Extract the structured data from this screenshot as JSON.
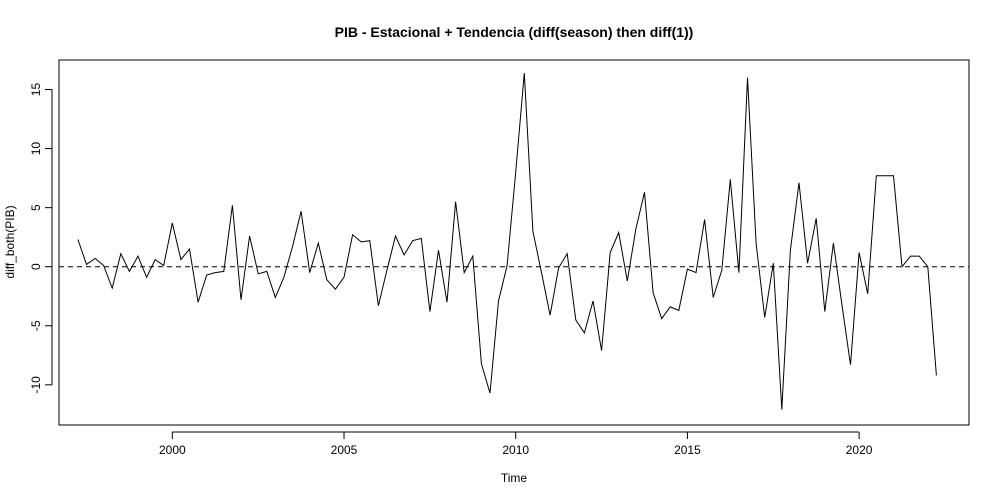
{
  "chart_data": {
    "type": "line",
    "title": "PIB - Estacional + Tendencia (diff(season) then diff(1))",
    "xlabel": "Time",
    "ylabel": "diff_both(PIB)",
    "xlim": [
      1996.7,
      2023.2
    ],
    "ylim": [
      -13.4,
      17.5
    ],
    "x_ticks": [
      2000,
      2005,
      2010,
      2015,
      2020
    ],
    "x_tick_labels": [
      "2000",
      "2005",
      "2010",
      "2015",
      "2020"
    ],
    "y_ticks": [
      -10,
      -5,
      0,
      5,
      10,
      15
    ],
    "y_tick_labels": [
      "-10",
      "-5",
      "0",
      "5",
      "10",
      "15"
    ],
    "reference_line": {
      "y": 0,
      "style": "dashed"
    },
    "grid": false,
    "series": [
      {
        "x": [
          1997.25,
          1997.5,
          1997.75,
          1998,
          1998.25,
          1998.5,
          1998.75,
          1999,
          1999.25,
          1999.5,
          1999.75,
          2000,
          2000.25,
          2000.5,
          2000.75,
          2001,
          2001.25,
          2001.5,
          2001.75,
          2002,
          2002.25,
          2002.5,
          2002.75,
          2003,
          2003.25,
          2003.5,
          2003.75,
          2004,
          2004.25,
          2004.5,
          2004.75,
          2005,
          2005.25,
          2005.5,
          2005.75,
          2006,
          2006.25,
          2006.5,
          2006.75,
          2007,
          2007.25,
          2007.5,
          2007.75,
          2008,
          2008.25,
          2008.5,
          2008.75,
          2009,
          2009.25,
          2009.5,
          2009.75,
          2010,
          2010.25,
          2010.5,
          2010.75,
          2011,
          2011.25,
          2011.5,
          2011.75,
          2012,
          2012.25,
          2012.5,
          2012.75,
          2013,
          2013.25,
          2013.5,
          2013.75,
          2014,
          2014.25,
          2014.5,
          2014.75,
          2015,
          2015.25,
          2015.5,
          2015.75,
          2016,
          2016.25,
          2016.5,
          2016.75,
          2017,
          2017.25,
          2017.5,
          2017.75,
          2018,
          2018.25,
          2018.5,
          2018.75,
          2019,
          2019.25,
          2019.5,
          2019.75,
          2020,
          2020.25,
          2020.5,
          2020.75,
          2021,
          2021.25,
          2021.5,
          2021.75,
          2022,
          2022.25
        ],
        "values": [
          2.3,
          0.2,
          0.7,
          0.1,
          -1.8,
          1.1,
          -0.4,
          0.9,
          -0.9,
          0.6,
          0.1,
          3.7,
          0.6,
          1.5,
          -3.0,
          -0.7,
          -0.5,
          -0.4,
          5.2,
          -2.8,
          2.6,
          -0.6,
          -0.4,
          -2.6,
          -0.9,
          1.7,
          4.7,
          -0.5,
          2.0,
          -1.1,
          -1.9,
          -0.9,
          2.7,
          2.1,
          2.2,
          -3.3,
          -0.3,
          2.6,
          1.0,
          2.2,
          2.4,
          -3.8,
          1.4,
          -3.0,
          5.5,
          -0.5,
          0.9,
          -8.2,
          -10.7,
          -2.9,
          0.1,
          8.0,
          16.4,
          3.0,
          -0.5,
          -4.1,
          -0.1,
          1.1,
          -4.5,
          -5.6,
          -2.9,
          -7.1,
          1.2,
          2.9,
          -1.2,
          3.2,
          6.3,
          -2.2,
          -4.4,
          -3.4,
          -3.7,
          -0.2,
          -0.5,
          4.0,
          -2.6,
          -0.3,
          7.4,
          -0.5,
          16.0,
          2.0,
          -4.3,
          0.3,
          -12.1,
          1.4,
          7.1,
          0.3,
          4.1,
          -3.8,
          2.0,
          -3.2,
          -8.3,
          1.2,
          -2.3,
          7.7,
          7.7,
          7.7,
          0.0,
          0.9,
          0.9,
          0.0,
          -9.2
        ]
      }
    ]
  }
}
